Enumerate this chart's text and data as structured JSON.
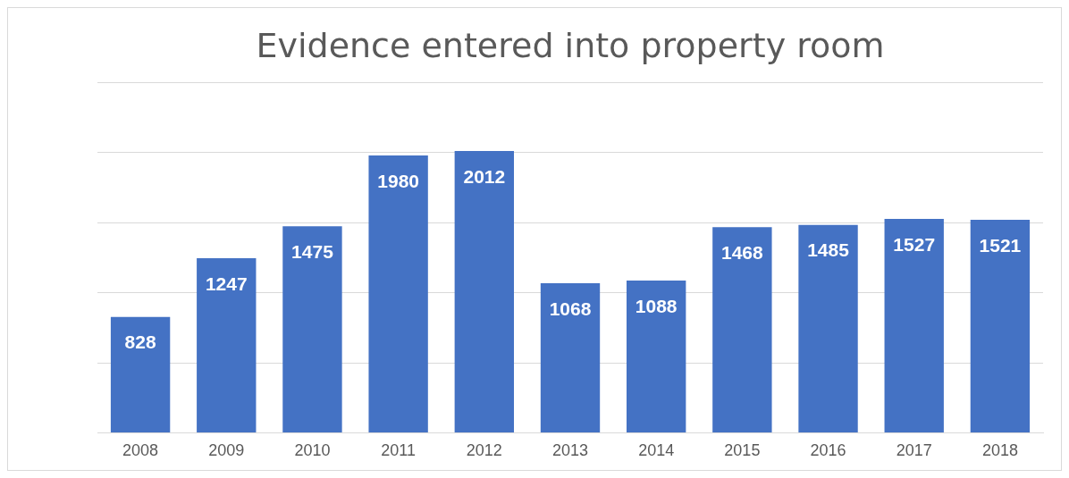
{
  "chart_data": {
    "type": "bar",
    "title": "Evidence entered into property room",
    "categories": [
      "2008",
      "2009",
      "2010",
      "2011",
      "2012",
      "2013",
      "2014",
      "2015",
      "2016",
      "2017",
      "2018"
    ],
    "values": [
      828,
      1247,
      1475,
      1980,
      2012,
      1068,
      1088,
      1468,
      1485,
      1527,
      1521
    ],
    "color": "#4472c4",
    "data_labels": true,
    "grid": "y",
    "tick_labels": "x",
    "ylim": [
      0,
      2500
    ],
    "yticks": [
      {
        "value": 0,
        "label": null
      },
      {
        "value": 500,
        "label": null
      },
      {
        "value": 1000,
        "label": null
      },
      {
        "value": 1500,
        "label": null
      },
      {
        "value": 2000,
        "label": null
      },
      {
        "value": 2500,
        "label": null
      }
    ]
  }
}
